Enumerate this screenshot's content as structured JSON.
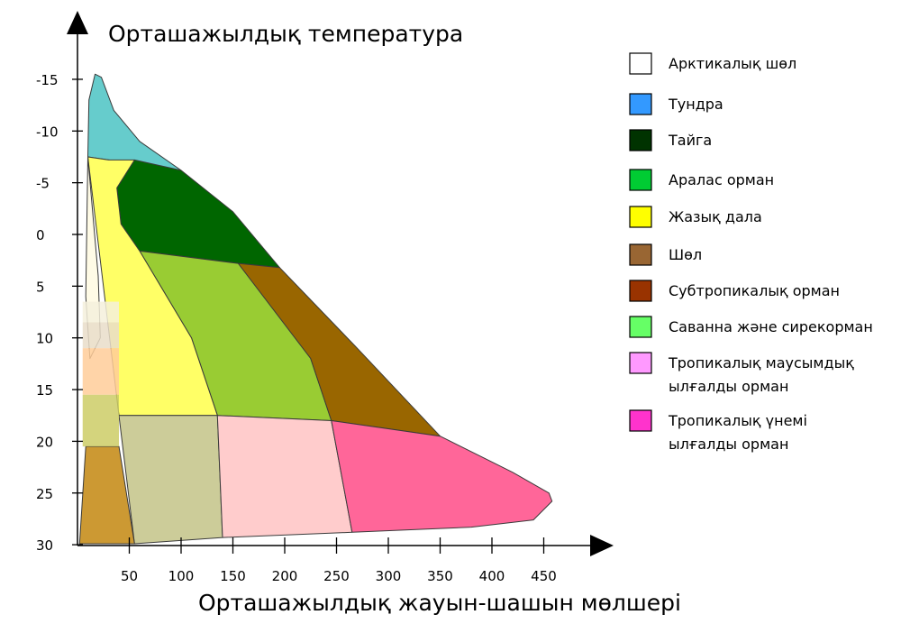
{
  "chart_data": {
    "type": "area",
    "title": "",
    "ylabel": "Орташажылдық температура",
    "xlabel": "Орташажылдық жауын-шашын мөлшері",
    "x_ticks": [
      50,
      100,
      150,
      200,
      250,
      300,
      350,
      400,
      450
    ],
    "y_ticks": [
      -15,
      -10,
      -5,
      0,
      5,
      10,
      15,
      20,
      25,
      30
    ],
    "xlim": [
      0,
      470
    ],
    "ylim": [
      -16,
      30
    ],
    "legend_placement": "right",
    "legend": [
      {
        "label": "Арктикалық шөл",
        "color": "#ffffff"
      },
      {
        "label": "Тундра",
        "color": "#3399ff"
      },
      {
        "label": "Тайга",
        "color": "#003300"
      },
      {
        "label": "Аралас орман",
        "color": "#00cc33"
      },
      {
        "label": "Жазық дала",
        "color": "#ffff00"
      },
      {
        "label": "Шөл",
        "color": "#996633"
      },
      {
        "label": "Субтропикалық орман",
        "color": "#993300"
      },
      {
        "label": "Саванна және сирекорман",
        "color": "#66ff66"
      },
      {
        "label": "Тропикалық маусымдық\nылғалды орман",
        "color": "#ff99ff"
      },
      {
        "label": "Тропикалық үнемі\nылғалды орман",
        "color": "#ff33cc"
      }
    ],
    "regions": [
      {
        "name": "Тундра",
        "color": "#66cccc",
        "polygon": [
          [
            10,
            -7.5
          ],
          [
            11,
            -13
          ],
          [
            17,
            -15.5
          ],
          [
            23,
            -15.2
          ],
          [
            35,
            -12
          ],
          [
            60,
            -9
          ],
          [
            100,
            -6.2
          ]
        ]
      },
      {
        "name": "Тайга",
        "color": "#006600",
        "polygon": [
          [
            55,
            -7.2
          ],
          [
            100,
            -6.2
          ],
          [
            150,
            -2.2
          ],
          [
            195,
            3.2
          ],
          [
            155,
            2.8
          ],
          [
            60,
            1.6
          ],
          [
            42,
            -1
          ],
          [
            38,
            -4.5
          ]
        ]
      },
      {
        "name": "Аралас орман",
        "color": "#99cc33",
        "polygon": [
          [
            60,
            1.6
          ],
          [
            155,
            2.8
          ],
          [
            195,
            3.2
          ],
          [
            225,
            12
          ],
          [
            245,
            18
          ],
          [
            135,
            17.5
          ],
          [
            110,
            10
          ]
        ]
      },
      {
        "name": "Субтропикалық орман",
        "color": "#996600",
        "polygon": [
          [
            155,
            2.8
          ],
          [
            195,
            3.2
          ],
          [
            270,
            11
          ],
          [
            350,
            19.5
          ],
          [
            245,
            18
          ],
          [
            225,
            12
          ]
        ]
      },
      {
        "name": "Жазық дала",
        "color": "#ffff66",
        "polygon": [
          [
            10,
            -7.5
          ],
          [
            30,
            -7.2
          ],
          [
            55,
            -7.2
          ],
          [
            38,
            -4.5
          ],
          [
            42,
            -1
          ],
          [
            60,
            1.6
          ],
          [
            110,
            10
          ],
          [
            135,
            17.5
          ],
          [
            40,
            17.5
          ]
        ]
      },
      {
        "name": "Арктикалық шөл",
        "color": "#fffbe6",
        "polygon": [
          [
            10,
            -7.5
          ],
          [
            20,
            4
          ],
          [
            22,
            10
          ],
          [
            12,
            12
          ],
          [
            8,
            6
          ]
        ]
      },
      {
        "name": "Шөл",
        "color": "#cccc99",
        "polygon": [
          [
            40,
            17.5
          ],
          [
            135,
            17.5
          ],
          [
            140,
            29.3
          ],
          [
            55,
            29.9
          ]
        ]
      },
      {
        "name": "Саванна және сирекорман",
        "color": "#ffcccc",
        "polygon": [
          [
            135,
            17.5
          ],
          [
            245,
            18
          ],
          [
            265,
            28.8
          ],
          [
            140,
            29.3
          ]
        ]
      },
      {
        "name": "Тропикалық үнемі ылғалды орман",
        "color": "#ff6699",
        "polygon": [
          [
            245,
            18
          ],
          [
            350,
            19.5
          ],
          [
            420,
            23
          ],
          [
            455,
            25
          ],
          [
            458,
            25.8
          ],
          [
            440,
            27.6
          ],
          [
            380,
            28.3
          ],
          [
            265,
            28.8
          ]
        ]
      },
      {
        "name": "Тропикалық маусымдық ылғалды орман",
        "color": "#cc9933",
        "polygon": [
          [
            8,
            20.5
          ],
          [
            40,
            20.5
          ],
          [
            55,
            29.9
          ],
          [
            2,
            29.9
          ]
        ]
      }
    ],
    "strips": [
      {
        "color": "#f5f0dc",
        "y": [
          6.5,
          8.5
        ]
      },
      {
        "color": "#e9ddc9",
        "y": [
          8.5,
          11
        ]
      },
      {
        "color": "#ffcc99",
        "y": [
          11,
          15.5
        ]
      },
      {
        "color": "#cccc66",
        "y": [
          15.5,
          20.5
        ]
      }
    ]
  }
}
